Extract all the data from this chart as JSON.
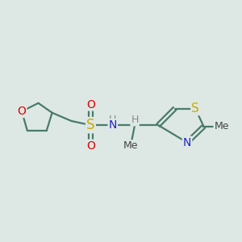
{
  "background_color": "#dde8e4",
  "bond_color": "#4a7a6a",
  "bond_width": 1.6,
  "atoms": {
    "O_ring": {
      "label": "O",
      "color": "#dd0000",
      "fontsize": 10
    },
    "S_sulfonyl": {
      "label": "S",
      "color": "#ccaa00",
      "fontsize": 12
    },
    "O1_s": {
      "label": "O",
      "color": "#dd0000",
      "fontsize": 10
    },
    "O2_s": {
      "label": "O",
      "color": "#dd0000",
      "fontsize": 10
    },
    "N": {
      "label": "N",
      "color": "#2222cc",
      "fontsize": 10
    },
    "H_N": {
      "label": "H",
      "color": "#888888",
      "fontsize": 9
    },
    "H_CH": {
      "label": "H",
      "color": "#888888",
      "fontsize": 9
    },
    "N_tz": {
      "label": "N",
      "color": "#2222cc",
      "fontsize": 10
    },
    "S_tz": {
      "label": "S",
      "color": "#ccaa00",
      "fontsize": 11
    },
    "Me_tz": {
      "label": "Me",
      "color": "#444444",
      "fontsize": 9
    },
    "Me_ch": {
      "label": "Me",
      "color": "#444444",
      "fontsize": 9
    }
  }
}
